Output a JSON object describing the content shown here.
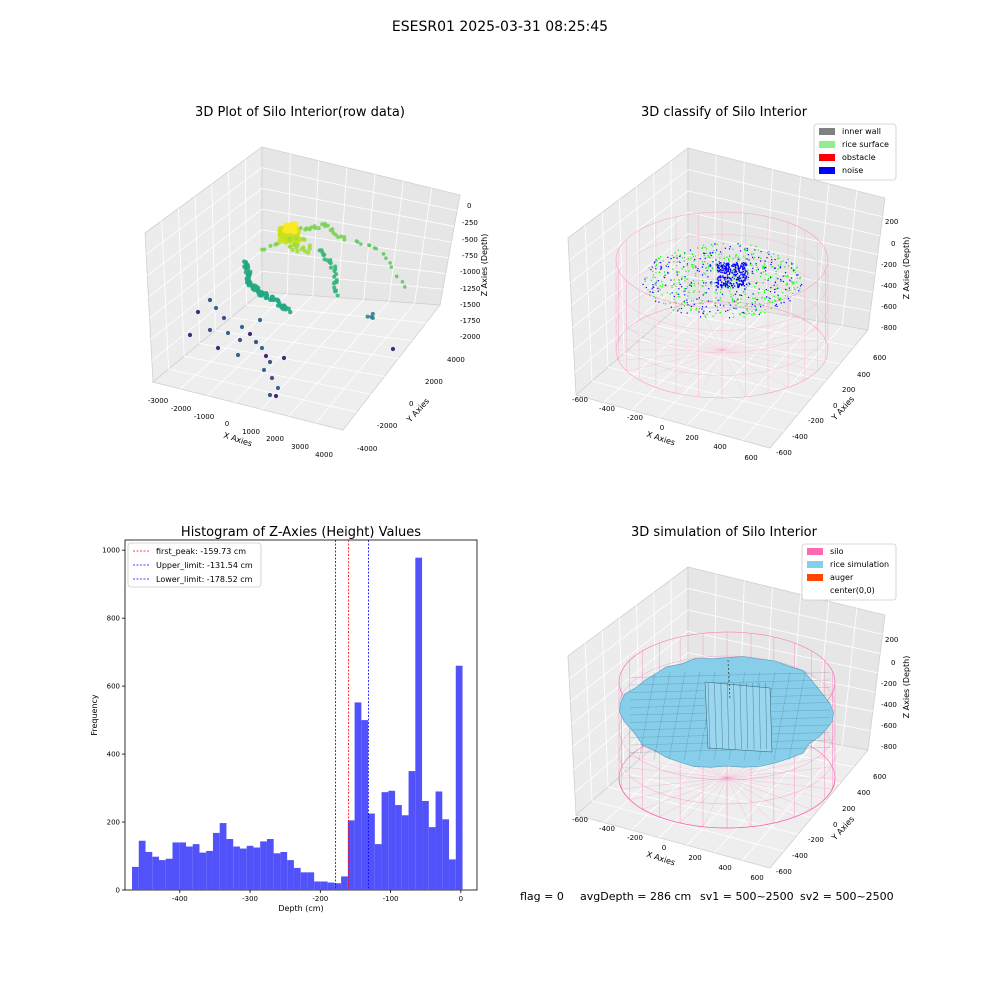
{
  "figure": {
    "suptitle": "ESESR01 2025-03-31 08:25:45",
    "footer": {
      "flag": "flag = 0",
      "avg_depth": "avgDepth = 286 cm",
      "sv1": "sv1 = 500~2500",
      "sv2": "sv2 = 500~2500"
    }
  },
  "panels": {
    "raw": {
      "title": "3D Plot of Silo Interior(row data)",
      "xlabel": "X Axies",
      "ylabel": "Y Axies",
      "zlabel": "Z Axies (Depth)",
      "xticks": [
        "-3000",
        "-2000",
        "-1000",
        "0",
        "1000",
        "2000",
        "3000",
        "4000"
      ],
      "yticks": [
        "4000",
        "2000",
        "0",
        "-2000",
        "-4000"
      ],
      "zticks": [
        "0",
        "-250",
        "-500",
        "-750",
        "-1000",
        "-1250",
        "-1500",
        "-1750",
        "-2000"
      ]
    },
    "classify": {
      "title": "3D classify of Silo Interior",
      "xlabel": "X Axies",
      "ylabel": "Y Axies",
      "zlabel": "Z Axies (Depth)",
      "xticks": [
        "-600",
        "-400",
        "-200",
        "0",
        "200",
        "400",
        "600"
      ],
      "yticks": [
        "600",
        "400",
        "200",
        "0",
        "-200",
        "-400",
        "-600"
      ],
      "zticks": [
        "200",
        "0",
        "-200",
        "-400",
        "-600",
        "-800"
      ],
      "legend": [
        {
          "label": "inner wall",
          "color": "#808080"
        },
        {
          "label": "rice surface",
          "color": "#90ee90"
        },
        {
          "label": "obstacle",
          "color": "#ff0000"
        },
        {
          "label": "noise",
          "color": "#0000ff"
        }
      ]
    },
    "simulation": {
      "title": "3D simulation of Silo Interior",
      "xlabel": "X Axies",
      "ylabel": "Y Axies",
      "zlabel": "Z Axies (Depth)",
      "xticks": [
        "-600",
        "-400",
        "-200",
        "0",
        "200",
        "400",
        "600"
      ],
      "yticks": [
        "600",
        "400",
        "200",
        "0",
        "-200",
        "-400",
        "-600"
      ],
      "zticks": [
        "200",
        "0",
        "-200",
        "-400",
        "-600",
        "-800"
      ],
      "legend": [
        {
          "label": "silo",
          "color": "#ff69b4"
        },
        {
          "label": "rice simulation",
          "color": "#87ceeb"
        },
        {
          "label": "auger",
          "color": "#ff4500"
        },
        {
          "label": "center(0,0)",
          "color": "#ffffff"
        }
      ]
    }
  },
  "chart_data": {
    "type": "bar",
    "title": "Histogram of Z-Axies (Height) Values",
    "xlabel": "Depth (cm)",
    "ylabel": "Frequency",
    "xlim": [
      -478,
      23
    ],
    "ylim": [
      0,
      1030
    ],
    "xticks": [
      -400,
      -300,
      -200,
      -100,
      0
    ],
    "yticks": [
      0,
      200,
      400,
      600,
      800,
      1000
    ],
    "bar_color": "#4f4ffb",
    "bin_width": 9.6,
    "bin_start": -468,
    "values": [
      68,
      145,
      112,
      98,
      88,
      92,
      140,
      140,
      128,
      135,
      110,
      115,
      168,
      197,
      150,
      128,
      122,
      130,
      125,
      143,
      150,
      108,
      112,
      88,
      65,
      52,
      52,
      25,
      25,
      22,
      20,
      40,
      205,
      552,
      500,
      225,
      135,
      288,
      292,
      250,
      220,
      350,
      978,
      262,
      185,
      290,
      208,
      90,
      660
    ],
    "lines": [
      {
        "label": "first_peak: -159.73 cm",
        "x": -159.73,
        "color": "#ff0000"
      },
      {
        "label": "Upper_limit: -131.54 cm",
        "x": -131.54,
        "color": "#0000ff"
      },
      {
        "label": "Lower_limit: -178.52 cm",
        "x": -178.52,
        "color": "#0000ff"
      }
    ]
  }
}
